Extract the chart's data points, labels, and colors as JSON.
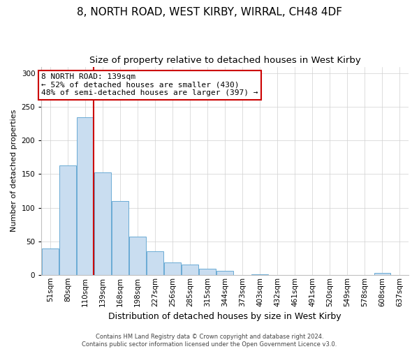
{
  "title": "8, NORTH ROAD, WEST KIRBY, WIRRAL, CH48 4DF",
  "subtitle": "Size of property relative to detached houses in West Kirby",
  "xlabel": "Distribution of detached houses by size in West Kirby",
  "ylabel": "Number of detached properties",
  "bar_labels": [
    "51sqm",
    "80sqm",
    "110sqm",
    "139sqm",
    "168sqm",
    "198sqm",
    "227sqm",
    "256sqm",
    "285sqm",
    "315sqm",
    "344sqm",
    "373sqm",
    "403sqm",
    "432sqm",
    "461sqm",
    "491sqm",
    "520sqm",
    "549sqm",
    "578sqm",
    "608sqm",
    "637sqm"
  ],
  "bar_heights": [
    39,
    163,
    235,
    153,
    110,
    57,
    35,
    18,
    15,
    9,
    6,
    0,
    1,
    0,
    0,
    0,
    0,
    0,
    0,
    3,
    0
  ],
  "bar_color": "#c9ddf0",
  "bar_edge_color": "#6aaad4",
  "highlight_color": "#cc0000",
  "vline_index": 3,
  "ylim": [
    0,
    310
  ],
  "yticks": [
    0,
    50,
    100,
    150,
    200,
    250,
    300
  ],
  "annotation_text": "8 NORTH ROAD: 139sqm\n← 52% of detached houses are smaller (430)\n48% of semi-detached houses are larger (397) →",
  "annotation_box_color": "#ffffff",
  "annotation_box_edge": "#cc0000",
  "footer1": "Contains HM Land Registry data © Crown copyright and database right 2024.",
  "footer2": "Contains public sector information licensed under the Open Government Licence v3.0.",
  "title_fontsize": 11,
  "subtitle_fontsize": 9.5,
  "xlabel_fontsize": 9,
  "ylabel_fontsize": 8,
  "tick_fontsize": 7.5,
  "footer_fontsize": 6,
  "ann_fontsize": 8
}
